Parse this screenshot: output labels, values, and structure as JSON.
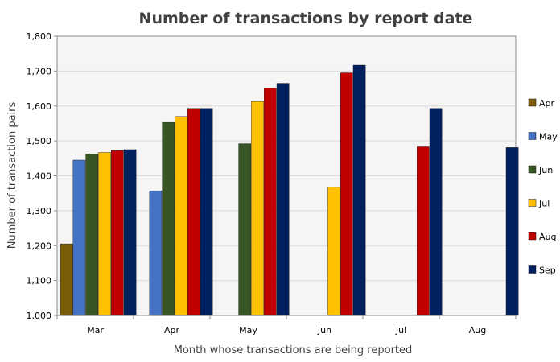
{
  "chart_data": {
    "type": "bar",
    "title": "Number of transactions by report date",
    "xlabel": "Month whose transactions are being reported",
    "ylabel": "Number of transaction pairs",
    "categories": [
      "Mar",
      "Apr",
      "May",
      "Jun",
      "Jul",
      "Aug"
    ],
    "ylim": [
      1000,
      1800
    ],
    "yticks": [
      1000,
      1100,
      1200,
      1300,
      1400,
      1500,
      1600,
      1700,
      1800
    ],
    "ytick_labels": [
      "1,000",
      "1,100",
      "1,200",
      "1,300",
      "1,400",
      "1,500",
      "1,600",
      "1,700",
      "1,800"
    ],
    "grid": true,
    "legend_position": "right",
    "series": [
      {
        "name": "Apr",
        "color": "#7a5c0a",
        "values": [
          1205,
          null,
          null,
          null,
          null,
          null
        ]
      },
      {
        "name": "May",
        "color": "#4472c4",
        "values": [
          1445,
          1357,
          null,
          null,
          null,
          null
        ]
      },
      {
        "name": "Jun",
        "color": "#375623",
        "values": [
          1463,
          1553,
          1492,
          null,
          null,
          null
        ]
      },
      {
        "name": "Jul",
        "color": "#ffc000",
        "values": [
          1467,
          1570,
          1613,
          1368,
          null,
          null
        ]
      },
      {
        "name": "Aug",
        "color": "#c00000",
        "values": [
          1472,
          1593,
          1652,
          1695,
          1483,
          null
        ]
      },
      {
        "name": "Sep",
        "color": "#002060",
        "values": [
          1475,
          1593,
          1665,
          1717,
          1593,
          1481
        ]
      }
    ]
  }
}
